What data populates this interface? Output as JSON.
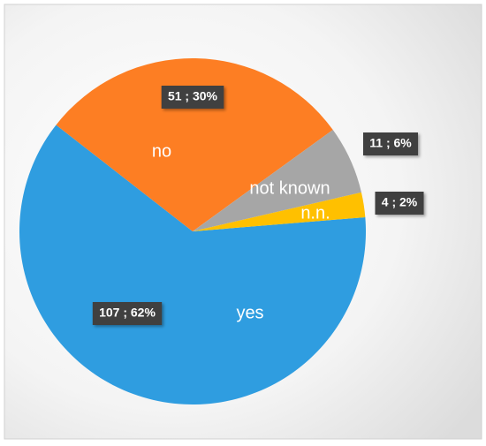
{
  "chart_data": {
    "type": "pie",
    "categories": [
      "yes",
      "no",
      "not known",
      "n.n."
    ],
    "values": [
      107,
      51,
      11,
      4
    ],
    "value_labels": [
      "107 ; 62%",
      "51 ; 30%",
      "11 ; 6%",
      "4 ; 2%"
    ],
    "colors": [
      "#2f9de0",
      "#fd7e23",
      "#a6a6a6",
      "#ffc000"
    ]
  }
}
